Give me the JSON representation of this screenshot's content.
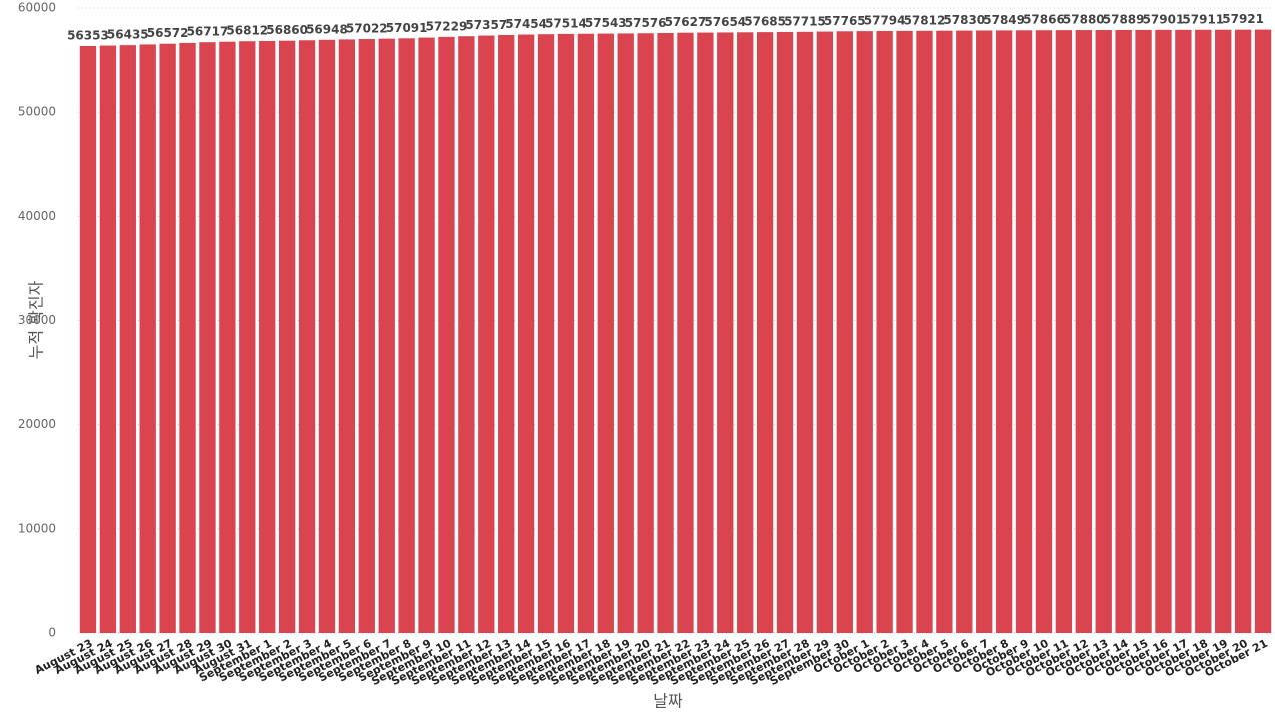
{
  "chart_data": {
    "type": "bar",
    "x_label": "날짜",
    "y_label": "누적 확진자",
    "categories": [
      "August 23",
      "August 24",
      "August 25",
      "August 26",
      "August 27",
      "August 28",
      "August 29",
      "August 30",
      "August 31",
      "September 1",
      "September 2",
      "September 3",
      "September 4",
      "September 5",
      "September 6",
      "September 7",
      "September 8",
      "September 9",
      "September 10",
      "September 11",
      "September 12",
      "September 13",
      "September 14",
      "September 15",
      "September 16",
      "September 17",
      "September 18",
      "September 19",
      "September 20",
      "September 21",
      "September 22",
      "September 23",
      "September 24",
      "September 25",
      "September 26",
      "September 27",
      "September 28",
      "September 29",
      "September 30",
      "October 1",
      "October 2",
      "October 3",
      "October 4",
      "October 5",
      "October 6",
      "October 7",
      "October 8",
      "October 9",
      "October 10",
      "October 11",
      "October 12",
      "October 13",
      "October 14",
      "October 15",
      "October 16",
      "October 17",
      "October 18",
      "October 19",
      "October 20",
      "October 21"
    ],
    "values": [
      56353,
      56394,
      56435,
      56504,
      56572,
      56645,
      56717,
      56765,
      56812,
      56836,
      56860,
      56904,
      56948,
      56985,
      57022,
      57057,
      57091,
      57160,
      57229,
      57293,
      57357,
      57406,
      57454,
      57484,
      57514,
      57529,
      57543,
      57560,
      57576,
      57602,
      57627,
      57641,
      57654,
      57670,
      57685,
      57700,
      57715,
      57740,
      57765,
      57780,
      57794,
      57803,
      57812,
      57821,
      57830,
      57840,
      57849,
      57858,
      57866,
      57873,
      57880,
      57885,
      57889,
      57895,
      57901,
      57906,
      57911,
      57916,
      57921,
      57926
    ],
    "value_labels": [
      "56353",
      null,
      "56435",
      null,
      "56572",
      null,
      "56717",
      null,
      "56812",
      null,
      "56860",
      null,
      "56948",
      null,
      "57022",
      null,
      "57091",
      null,
      "57229",
      null,
      "57357",
      null,
      "57454",
      null,
      "57514",
      null,
      "57543",
      null,
      "57576",
      null,
      "57627",
      null,
      "57654",
      null,
      "57685",
      null,
      "57715",
      null,
      "57765",
      null,
      "57794",
      null,
      "57812",
      null,
      "57830",
      null,
      "57849",
      null,
      "57866",
      null,
      "57880",
      null,
      "57889",
      null,
      "57901",
      null,
      "57911",
      null,
      "57921",
      null
    ],
    "color": "#d9444f",
    "ylim": [
      0,
      60000
    ],
    "yticks": [
      0,
      10000,
      20000,
      30000,
      40000,
      50000,
      60000
    ],
    "grid": true
  }
}
